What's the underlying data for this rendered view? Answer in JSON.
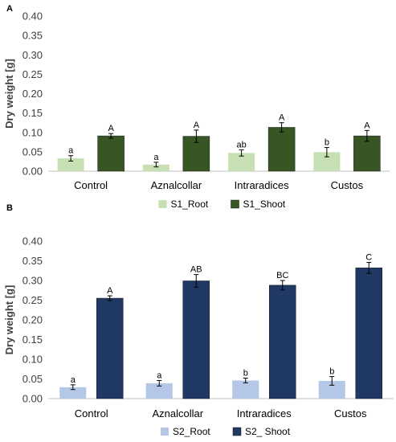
{
  "panels": [
    {
      "label": "A"
    },
    {
      "label": "B"
    }
  ],
  "chart_data": [
    {
      "type": "bar",
      "panel": "A",
      "categories": [
        "Control",
        "Aznalcollar",
        "Intraradices",
        "Custos"
      ],
      "ylabel": "Dry weight [g]",
      "ylim": [
        0,
        0.4
      ],
      "yticks": [
        "0.00",
        "0.05",
        "0.10",
        "0.15",
        "0.20",
        "0.25",
        "0.30",
        "0.35",
        "0.40"
      ],
      "grid": false,
      "legend_position": "bottom-center",
      "series": [
        {
          "name": "S1_Root",
          "color": "#c6e0b4",
          "values": [
            0.033,
            0.017,
            0.047,
            0.049
          ],
          "errors": [
            0.007,
            0.006,
            0.008,
            0.012
          ],
          "letters": [
            "a",
            "a",
            "ab",
            "b"
          ]
        },
        {
          "name": "S1_Shoot",
          "color": "#375623",
          "values": [
            0.091,
            0.09,
            0.113,
            0.091
          ],
          "errors": [
            0.006,
            0.016,
            0.012,
            0.014
          ],
          "letters": [
            "A",
            "A",
            "A",
            "A"
          ]
        }
      ]
    },
    {
      "type": "bar",
      "panel": "B",
      "categories": [
        "Control",
        "Aznalcollar",
        "Intraradices",
        "Custos"
      ],
      "ylabel": "Dry weight [g]",
      "ylim": [
        0,
        0.4
      ],
      "yticks": [
        "0.00",
        "0.05",
        "0.10",
        "0.15",
        "0.20",
        "0.25",
        "0.30",
        "0.35",
        "0.40"
      ],
      "grid": false,
      "legend_position": "bottom-center",
      "series": [
        {
          "name": "S2_Root",
          "color": "#b4c7e7",
          "values": [
            0.029,
            0.039,
            0.046,
            0.045
          ],
          "errors": [
            0.006,
            0.007,
            0.006,
            0.011
          ],
          "letters": [
            "a",
            "a",
            "b",
            "b"
          ]
        },
        {
          "name": "S2_ Shoot",
          "color": "#203864",
          "values": [
            0.255,
            0.299,
            0.288,
            0.332
          ],
          "errors": [
            0.006,
            0.016,
            0.012,
            0.014
          ],
          "letters": [
            "A",
            "AB",
            "BC",
            "C"
          ]
        }
      ]
    }
  ]
}
